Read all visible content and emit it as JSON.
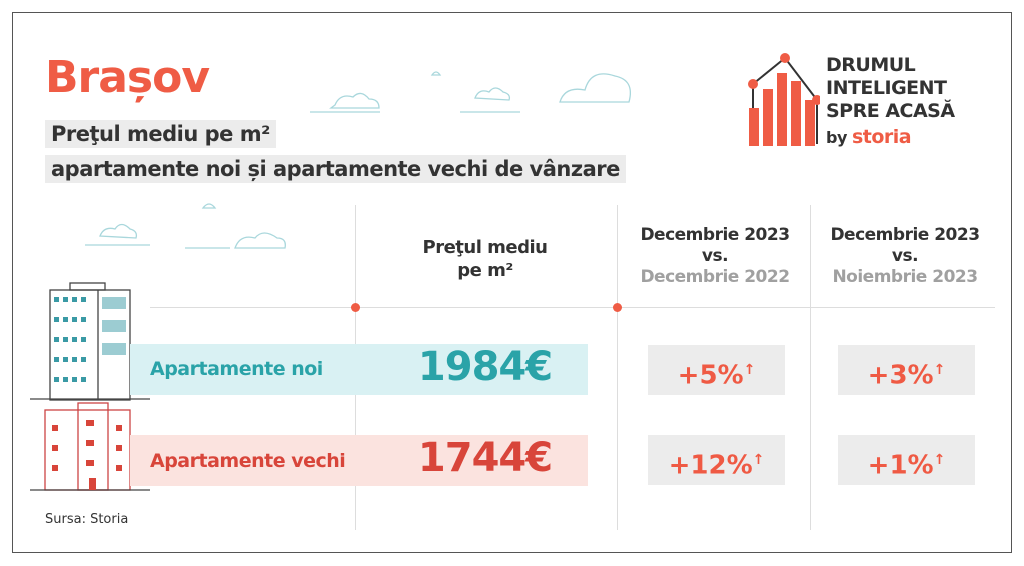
{
  "header": {
    "city": "Brașov",
    "subtitle1": "Preţul mediu pe m²",
    "subtitle2": "apartamente noi și apartamente vechi de vânzare"
  },
  "logo": {
    "line1": "DRUMUL",
    "line2": "INTELIGENT",
    "line3": "SPRE ACASĂ",
    "by": "by",
    "brand": "storia"
  },
  "columns": {
    "price": [
      "Preţul mediu",
      "pe m²"
    ],
    "yoy": {
      "top": "Decembrie 2023",
      "vs": "vs.",
      "bottom": "Decembrie 2022"
    },
    "mom": {
      "top": "Decembrie 2023",
      "vs": "vs.",
      "bottom": "Noiembrie 2023"
    }
  },
  "rows": [
    {
      "label": "Apartamente noi",
      "price": "1984€",
      "yoy": "+5%",
      "mom": "+3%",
      "color": "#2aa3a8",
      "band": "#d9f1f3"
    },
    {
      "label": "Apartamente vechi",
      "price": "1744€",
      "yoy": "+12%",
      "mom": "+1%",
      "color": "#d8453a",
      "band": "#fbe3df"
    }
  ],
  "arrow": "↑",
  "source": "Sursa: Storia",
  "colors": {
    "accent": "#ef5c45",
    "text": "#333333",
    "box": "#ececec"
  }
}
